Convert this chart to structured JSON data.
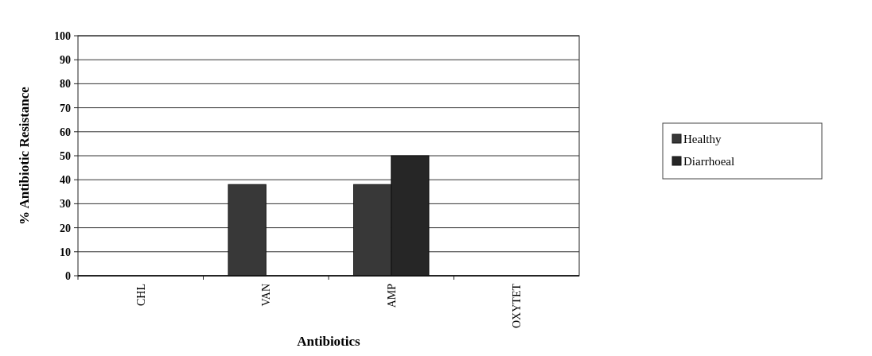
{
  "chart_data": {
    "type": "bar",
    "xlabel": "Antibiotics",
    "ylabel": "% Antibiotic Resistance",
    "categories": [
      "CHL",
      "VAN",
      "AMP",
      "OXYTET"
    ],
    "series": [
      {
        "name": "Healthy",
        "color": "#383838",
        "values": [
          0,
          38,
          38,
          0
        ]
      },
      {
        "name": "Diarrhoeal",
        "color": "#262626",
        "values": [
          0,
          0,
          50,
          0
        ]
      }
    ],
    "ylim": [
      0,
      100
    ],
    "yticks": [
      0,
      10,
      20,
      30,
      40,
      50,
      60,
      70,
      80,
      90,
      100
    ],
    "grid": "y",
    "legend": "right"
  }
}
